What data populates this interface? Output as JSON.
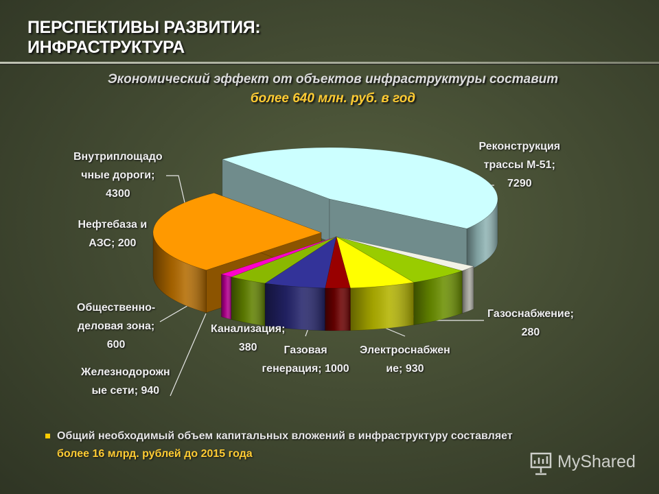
{
  "slide": {
    "title_line1": "ПЕРСПЕКТИВЫ РАЗВИТИЯ:",
    "title_line2": "ИНФРАСТРУКТУРА",
    "subtitle_line1": "Экономический эффект от объектов инфраструктуры составит",
    "subtitle_line2": "более 640 млн. руб. в год",
    "note_line1": "Общий необходимый объем капитальных вложений в инфраструктуру составляет",
    "note_line2": "более 16 млрд. рублей до 2015 года",
    "watermark": "MyShared",
    "watermark_icon": "presentation-board-icon"
  },
  "chart_data": {
    "type": "pie",
    "style": "3d-exploded",
    "title": "",
    "start_slice": "Реконструкция трассы М-51",
    "direction": "clockwise",
    "slices": [
      {
        "name": "Реконструкция трассы М-51",
        "value": 7290,
        "color": "#ccffff",
        "label_lines": [
          "Реконструкция",
          "трассы М-51;",
          "7290"
        ]
      },
      {
        "name": "Газоснабжение",
        "value": 280,
        "color": "#f2f2e6",
        "label_lines": [
          "Газоснабжение;",
          "280"
        ]
      },
      {
        "name": "Электроснабжение",
        "value": 930,
        "color": "#99cc00",
        "label_lines": [
          "Электроснабжен",
          "ие; 930"
        ]
      },
      {
        "name": "Газовая генерация",
        "value": 1000,
        "color": "#ffff00",
        "label_lines": [
          "Газовая",
          "генерация; 1000"
        ]
      },
      {
        "name": "Канализация",
        "value": 380,
        "color": "#990000",
        "label_lines": [
          "Канализация;",
          "380"
        ]
      },
      {
        "name": "Железнодорожные сети",
        "value": 940,
        "color": "#333399",
        "label_lines": [
          "Железнодорожн",
          "ые сети; 940"
        ]
      },
      {
        "name": "Общественно-деловая зона",
        "value": 600,
        "color": "#8ab800",
        "label_lines": [
          "Общественно-",
          "деловая зона;",
          "600"
        ]
      },
      {
        "name": "Нефтебаза и АЗС",
        "value": 200,
        "color": "#ff00cc",
        "label_lines": [
          "Нефтебаза и",
          "АЗС; 200"
        ]
      },
      {
        "name": "Внутриплощадочные дороги",
        "value": 4300,
        "color": "#ff9900",
        "label_lines": [
          "Внутриплощадо",
          "чные дороги;",
          "4300"
        ]
      }
    ]
  }
}
